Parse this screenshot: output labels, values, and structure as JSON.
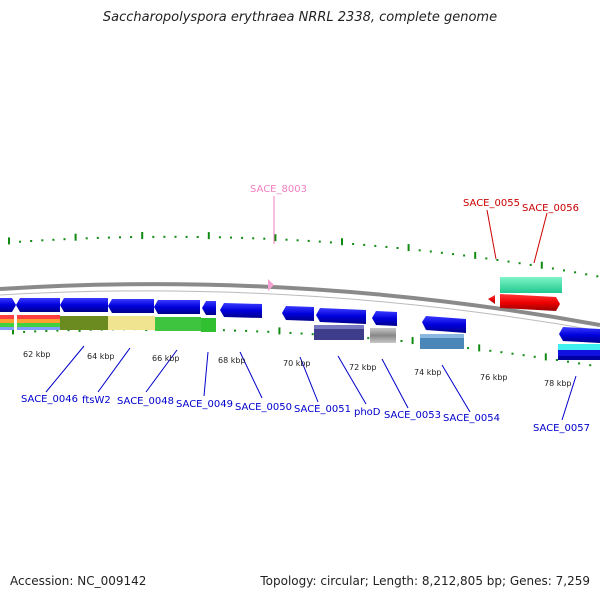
{
  "title": "Saccharopolyspora erythraea NRRL 2338, complete genome",
  "footer": {
    "accession": "Accession: NC_009142",
    "summary": "Topology: circular; Length: 8,212,805 bp; Genes: 7,259"
  },
  "scale_labels": [
    "62 kbp",
    "64 kbp",
    "66 kbp",
    "68 kbp",
    "70 kbp",
    "72 kbp",
    "74 kbp",
    "76 kbp",
    "78 kbp"
  ],
  "gene_labels": [
    {
      "text": "SACE_8003",
      "color": "#f080c0"
    },
    {
      "text": "SACE_0055",
      "color": "#cc0000"
    },
    {
      "text": "SACE_0056",
      "color": "#cc0000"
    },
    {
      "text": "SACE_0046",
      "color": "#0000cc"
    },
    {
      "text": "ftsW2",
      "color": "#0000cc"
    },
    {
      "text": "SACE_0048",
      "color": "#0000cc"
    },
    {
      "text": "SACE_0049",
      "color": "#0000cc"
    },
    {
      "text": "SACE_0050",
      "color": "#0000cc"
    },
    {
      "text": "SACE_0051",
      "color": "#0000cc"
    },
    {
      "text": "phoD",
      "color": "#0000cc"
    },
    {
      "text": "SACE_0053",
      "color": "#0000cc"
    },
    {
      "text": "SACE_0054",
      "color": "#0000cc"
    },
    {
      "text": "SACE_0057",
      "color": "#0000cc"
    }
  ],
  "colors": {
    "backbone": "#909090",
    "forward_gene": "#0000dd",
    "reverse_gene": "#ee0000",
    "tick_green": "#108a10"
  }
}
